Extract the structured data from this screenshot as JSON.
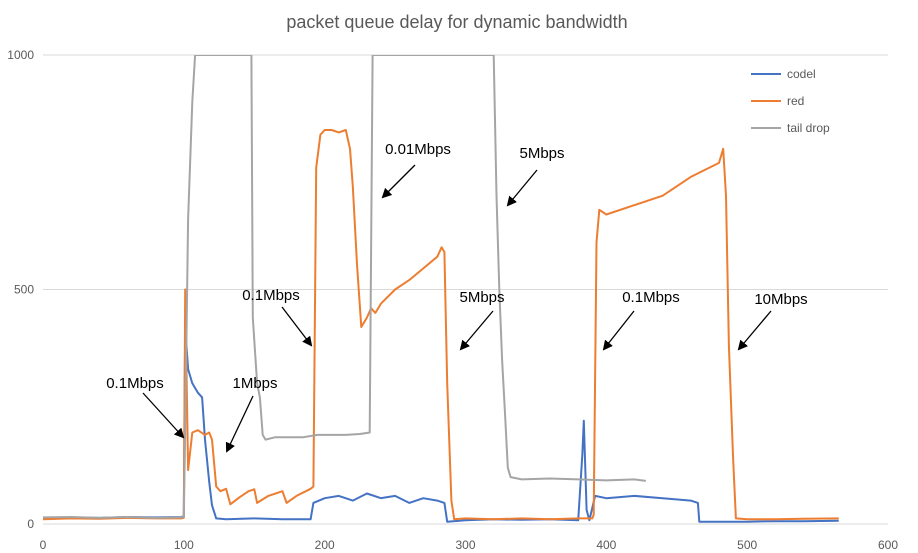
{
  "chart_data": {
    "type": "line",
    "title": "packet queue delay for dynamic bandwidth",
    "xlabel": "",
    "ylabel": "",
    "xlim": [
      0,
      600
    ],
    "ylim": [
      0,
      1000
    ],
    "x_ticks": [
      0,
      100,
      200,
      300,
      400,
      500,
      600
    ],
    "y_ticks": [
      0,
      500,
      1000
    ],
    "grid": "horizontal",
    "legend_position": "top-right",
    "series": [
      {
        "name": "codel",
        "color": "#4472C4",
        "points": [
          [
            0,
            12
          ],
          [
            20,
            14
          ],
          [
            40,
            13
          ],
          [
            60,
            15
          ],
          [
            80,
            14
          ],
          [
            98,
            15
          ],
          [
            100,
            16
          ],
          [
            101,
            420
          ],
          [
            103,
            330
          ],
          [
            106,
            300
          ],
          [
            110,
            280
          ],
          [
            113,
            270
          ],
          [
            115,
            180
          ],
          [
            118,
            90
          ],
          [
            120,
            40
          ],
          [
            123,
            12
          ],
          [
            130,
            10
          ],
          [
            150,
            12
          ],
          [
            170,
            10
          ],
          [
            190,
            10
          ],
          [
            192,
            45
          ],
          [
            200,
            55
          ],
          [
            210,
            60
          ],
          [
            220,
            50
          ],
          [
            230,
            65
          ],
          [
            240,
            55
          ],
          [
            250,
            60
          ],
          [
            260,
            45
          ],
          [
            270,
            55
          ],
          [
            280,
            50
          ],
          [
            285,
            45
          ],
          [
            287,
            5
          ],
          [
            300,
            8
          ],
          [
            320,
            10
          ],
          [
            340,
            9
          ],
          [
            360,
            10
          ],
          [
            380,
            8
          ],
          [
            383,
            150
          ],
          [
            384,
            220
          ],
          [
            386,
            30
          ],
          [
            388,
            8
          ],
          [
            392,
            60
          ],
          [
            400,
            55
          ],
          [
            420,
            60
          ],
          [
            440,
            55
          ],
          [
            460,
            50
          ],
          [
            465,
            45
          ],
          [
            466,
            5
          ],
          [
            480,
            5
          ],
          [
            500,
            5
          ],
          [
            520,
            6
          ],
          [
            540,
            6
          ],
          [
            565,
            7
          ]
        ]
      },
      {
        "name": "red",
        "color": "#ED7D31",
        "points": [
          [
            0,
            10
          ],
          [
            20,
            12
          ],
          [
            40,
            11
          ],
          [
            60,
            13
          ],
          [
            80,
            12
          ],
          [
            98,
            12
          ],
          [
            100,
            13
          ],
          [
            101,
            500
          ],
          [
            103,
            115
          ],
          [
            106,
            195
          ],
          [
            110,
            200
          ],
          [
            115,
            190
          ],
          [
            118,
            195
          ],
          [
            120,
            180
          ],
          [
            123,
            80
          ],
          [
            126,
            70
          ],
          [
            130,
            75
          ],
          [
            133,
            42
          ],
          [
            140,
            58
          ],
          [
            146,
            70
          ],
          [
            150,
            74
          ],
          [
            152,
            45
          ],
          [
            160,
            60
          ],
          [
            170,
            70
          ],
          [
            173,
            45
          ],
          [
            180,
            60
          ],
          [
            190,
            75
          ],
          [
            192,
            80
          ],
          [
            194,
            760
          ],
          [
            197,
            830
          ],
          [
            200,
            840
          ],
          [
            205,
            840
          ],
          [
            210,
            835
          ],
          [
            215,
            840
          ],
          [
            218,
            800
          ],
          [
            220,
            720
          ],
          [
            223,
            550
          ],
          [
            226,
            420
          ],
          [
            230,
            440
          ],
          [
            233,
            460
          ],
          [
            236,
            450
          ],
          [
            240,
            470
          ],
          [
            250,
            500
          ],
          [
            260,
            520
          ],
          [
            270,
            545
          ],
          [
            280,
            570
          ],
          [
            283,
            590
          ],
          [
            285,
            580
          ],
          [
            287,
            300
          ],
          [
            290,
            50
          ],
          [
            292,
            10
          ],
          [
            300,
            12
          ],
          [
            320,
            10
          ],
          [
            340,
            12
          ],
          [
            360,
            10
          ],
          [
            380,
            12
          ],
          [
            390,
            12
          ],
          [
            391,
            20
          ],
          [
            393,
            600
          ],
          [
            395,
            670
          ],
          [
            400,
            660
          ],
          [
            420,
            680
          ],
          [
            440,
            700
          ],
          [
            460,
            740
          ],
          [
            480,
            770
          ],
          [
            483,
            800
          ],
          [
            485,
            700
          ],
          [
            487,
            380
          ],
          [
            490,
            140
          ],
          [
            492,
            12
          ],
          [
            500,
            10
          ],
          [
            520,
            10
          ],
          [
            540,
            11
          ],
          [
            565,
            12
          ]
        ]
      },
      {
        "name": "tail drop",
        "color": "#A5A5A5",
        "points": [
          [
            0,
            14
          ],
          [
            20,
            15
          ],
          [
            40,
            13
          ],
          [
            60,
            15
          ],
          [
            80,
            13
          ],
          [
            98,
            14
          ],
          [
            100,
            15
          ],
          [
            101,
            200
          ],
          [
            103,
            650
          ],
          [
            106,
            900
          ],
          [
            108,
            1000
          ],
          [
            148,
            1000
          ],
          [
            149,
            440
          ],
          [
            152,
            300
          ],
          [
            154,
            270
          ],
          [
            156,
            190
          ],
          [
            158,
            180
          ],
          [
            165,
            185
          ],
          [
            175,
            185
          ],
          [
            185,
            185
          ],
          [
            195,
            190
          ],
          [
            205,
            190
          ],
          [
            215,
            190
          ],
          [
            225,
            192
          ],
          [
            232,
            195
          ],
          [
            234,
            1000
          ],
          [
            320,
            1000
          ],
          [
            322,
            700
          ],
          [
            324,
            500
          ],
          [
            326,
            350
          ],
          [
            328,
            240
          ],
          [
            330,
            120
          ],
          [
            332,
            100
          ],
          [
            340,
            95
          ],
          [
            360,
            97
          ],
          [
            380,
            95
          ],
          [
            400,
            93
          ],
          [
            420,
            95
          ],
          [
            428,
            92
          ]
        ]
      }
    ],
    "annotations": [
      {
        "text": "0.1Mbps",
        "x": 100
      },
      {
        "text": "1Mbps",
        "x": 130
      },
      {
        "text": "0.1Mbps",
        "x": 190
      },
      {
        "text": "0.01Mbps",
        "x": 235
      },
      {
        "text": "5Mbps",
        "x": 290
      },
      {
        "text": "5Mbps",
        "x": 330
      },
      {
        "text": "0.1Mbps",
        "x": 390
      },
      {
        "text": "10Mbps",
        "x": 490
      }
    ]
  }
}
